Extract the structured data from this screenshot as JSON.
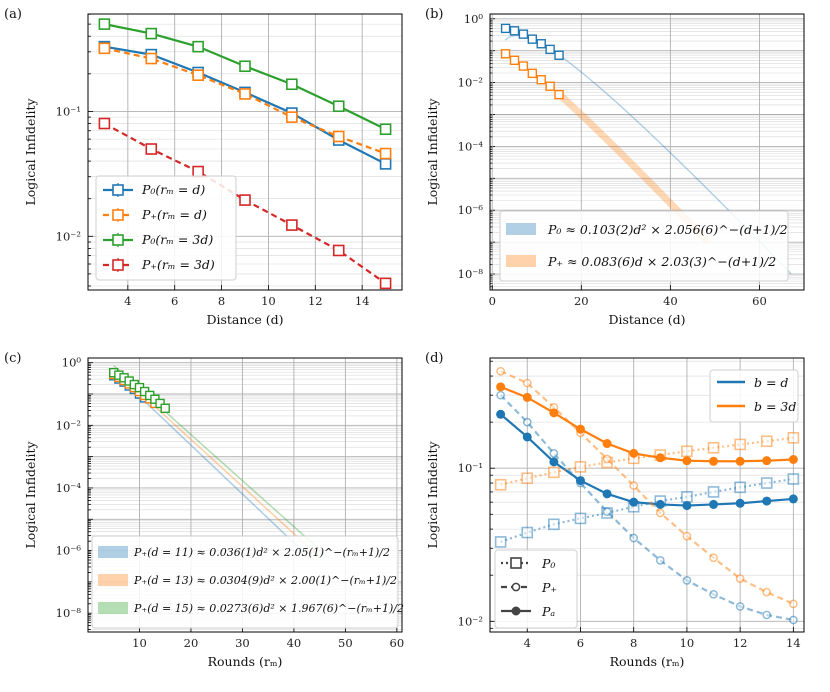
{
  "colors": {
    "blue": "#1f77b4",
    "orange": "#ff7f0e",
    "green": "#2ca02c",
    "red": "#d62728"
  },
  "chart_data": [
    {
      "panel": "(a)",
      "type": "line",
      "xlabel": "Distance (d)",
      "ylabel": "Logical Infidelity",
      "xlim": [
        2.3,
        15.7
      ],
      "ylim_log10": [
        -2.43,
        -0.22
      ],
      "xticks": [
        4,
        6,
        8,
        10,
        12,
        14
      ],
      "yticks": [
        {
          "v": -2,
          "label": "10⁻²"
        },
        {
          "v": -1,
          "label": "10⁻¹"
        }
      ],
      "legend": "lower-left",
      "series": [
        {
          "name": "P₀(rₘ = d)",
          "color": "blue",
          "dash": "solid",
          "marker": "square-open",
          "x": [
            3,
            5,
            7,
            9,
            11,
            13,
            15
          ],
          "y": [
            0.33,
            0.285,
            0.205,
            0.142,
            0.097,
            0.059,
            0.038
          ]
        },
        {
          "name": "P₊(rₘ = d)",
          "color": "orange",
          "dash": "dashed",
          "marker": "square-open",
          "x": [
            3,
            5,
            7,
            9,
            11,
            13,
            15
          ],
          "y": [
            0.32,
            0.265,
            0.195,
            0.138,
            0.09,
            0.063,
            0.046
          ]
        },
        {
          "name": "P₀(rₘ = 3d)",
          "color": "green",
          "dash": "solid",
          "marker": "square-open",
          "x": [
            3,
            5,
            7,
            9,
            11,
            13,
            15
          ],
          "y": [
            0.5,
            0.42,
            0.33,
            0.23,
            0.165,
            0.11,
            0.072
          ]
        },
        {
          "name": "P₊(rₘ = 3d)",
          "color": "red",
          "dash": "dashed",
          "marker": "square-open",
          "x": [
            3,
            5,
            7,
            9,
            11,
            13,
            15
          ],
          "y": [
            0.08,
            0.05,
            0.033,
            0.0195,
            0.0123,
            0.0077,
            0.0042
          ]
        }
      ]
    },
    {
      "panel": "(b)",
      "type": "line",
      "xlabel": "Distance (d)",
      "ylabel": "Logical Infidelity",
      "xlim": [
        -0.5,
        70
      ],
      "ylim_log10": [
        -8.5,
        0.15
      ],
      "xticks": [
        0,
        20,
        40,
        60
      ],
      "yticks": [
        {
          "v": 0,
          "label": "10⁰"
        },
        {
          "v": -2,
          "label": "10⁻²"
        },
        {
          "v": -4,
          "label": "10⁻⁴"
        },
        {
          "v": -6,
          "label": "10⁻⁶"
        },
        {
          "v": -8,
          "label": "10⁻⁸"
        }
      ],
      "legend": "lower-left",
      "fits": [
        {
          "name": "P₀ ≈ 0.103(2)d² × 2.056(6)^−(d+1)/2",
          "color": "blue",
          "A": 0.103,
          "pow": 2,
          "base": 2.056,
          "x0": 3,
          "x1": 67
        },
        {
          "name": "P₊ ≈ 0.083(6)d × 2.03(3)^−(d+1)/2",
          "color": "orange",
          "A": 0.083,
          "pow": 1,
          "base": 2.03,
          "x0": 15,
          "x1": 48
        }
      ],
      "series": [
        {
          "name": "P₀",
          "color": "blue",
          "marker": "square-open",
          "x": [
            3,
            5,
            7,
            9,
            11,
            13,
            15
          ],
          "y": [
            0.5,
            0.42,
            0.33,
            0.23,
            0.165,
            0.11,
            0.072
          ]
        },
        {
          "name": "P₊",
          "color": "orange",
          "marker": "square-open",
          "x": [
            3,
            5,
            7,
            9,
            11,
            13,
            15
          ],
          "y": [
            0.08,
            0.05,
            0.033,
            0.0195,
            0.0123,
            0.0077,
            0.0042
          ]
        }
      ]
    },
    {
      "panel": "(c)",
      "type": "line",
      "xlabel": "Rounds (rₘ)",
      "ylabel": "Logical Infidelity",
      "xlim": [
        0,
        61
      ],
      "ylim_log10": [
        -8.6,
        0.15
      ],
      "xticks": [
        10,
        20,
        30,
        40,
        50,
        60
      ],
      "yticks": [
        {
          "v": 0,
          "label": "10⁰"
        },
        {
          "v": -2,
          "label": "10⁻²"
        },
        {
          "v": -4,
          "label": "10⁻⁴"
        },
        {
          "v": -6,
          "label": "10⁻⁶"
        },
        {
          "v": -8,
          "label": "10⁻⁸"
        }
      ],
      "legend": "lower-left",
      "fits": [
        {
          "name": "P₊(d = 11) ≈ 0.036(1)d² × 2.05(1)^−(rₘ+1)/2",
          "color": "blue",
          "A": 0.036,
          "d": 11,
          "base": 2.05,
          "x0": 5,
          "x1": 42
        },
        {
          "name": "P₊(d = 13) ≈ 0.0304(9)d² × 2.00(1)^−(rₘ+1)/2",
          "color": "orange",
          "A": 0.0304,
          "d": 13,
          "base": 2.0,
          "x0": 5,
          "x1": 45
        },
        {
          "name": "P₊(d = 15) ≈ 0.0273(6)d² × 1.967(6)^−(rₘ+1)/2",
          "color": "green",
          "A": 0.0273,
          "d": 15,
          "base": 1.967,
          "x0": 5,
          "x1": 47
        }
      ],
      "series": [
        {
          "name": "d=11",
          "color": "blue",
          "marker": "square-open",
          "x": [
            5,
            6,
            7,
            8,
            9,
            10,
            11
          ],
          "y": [
            0.38,
            0.3,
            0.24,
            0.18,
            0.14,
            0.1,
            0.075
          ]
        },
        {
          "name": "d=13",
          "color": "orange",
          "marker": "square-open",
          "x": [
            5,
            6,
            7,
            8,
            9,
            10,
            11,
            12,
            13
          ],
          "y": [
            0.42,
            0.34,
            0.27,
            0.21,
            0.16,
            0.12,
            0.09,
            0.07,
            0.05
          ]
        },
        {
          "name": "d=15",
          "color": "green",
          "marker": "square-open",
          "x": [
            5,
            6,
            7,
            8,
            9,
            10,
            11,
            12,
            13,
            14,
            15
          ],
          "y": [
            0.48,
            0.4,
            0.33,
            0.26,
            0.2,
            0.16,
            0.12,
            0.09,
            0.068,
            0.05,
            0.035
          ]
        }
      ]
    },
    {
      "panel": "(d)",
      "type": "line",
      "xlabel": "Rounds (rₘ)",
      "ylabel": "Logical Infidelity",
      "xlim": [
        2.6,
        14.4
      ],
      "ylim_log10": [
        -2.07,
        -0.28
      ],
      "xticks": [
        4,
        6,
        8,
        10,
        12,
        14
      ],
      "yticks": [
        {
          "v": -2,
          "label": "10⁻²"
        },
        {
          "v": -1,
          "label": "10⁻¹"
        }
      ],
      "legend_colors": [
        {
          "name": "b = d",
          "color": "blue"
        },
        {
          "name": "b = 3d",
          "color": "orange"
        }
      ],
      "legend_styles": [
        {
          "name": "P₀",
          "dash": "dotted",
          "marker": "square-open"
        },
        {
          "name": "P₊",
          "dash": "dashed",
          "marker": "circle-open"
        },
        {
          "name": "Pₐ",
          "dash": "solid",
          "marker": "circle-filled"
        }
      ],
      "series": [
        {
          "name": "P₀ b=d",
          "color": "blue",
          "dash": "dotted",
          "marker": "square-open",
          "alpha": 0.5,
          "x": [
            3,
            4,
            5,
            6,
            7,
            8,
            9,
            10,
            11,
            12,
            13,
            14
          ],
          "y": [
            0.033,
            0.038,
            0.043,
            0.047,
            0.051,
            0.056,
            0.061,
            0.065,
            0.07,
            0.075,
            0.08,
            0.085
          ]
        },
        {
          "name": "P₊ b=d",
          "color": "blue",
          "dash": "dashed",
          "marker": "circle-open",
          "alpha": 0.5,
          "x": [
            3,
            4,
            5,
            6,
            7,
            8,
            9,
            10,
            11,
            12,
            13,
            14
          ],
          "y": [
            0.3,
            0.2,
            0.125,
            0.08,
            0.052,
            0.035,
            0.025,
            0.0185,
            0.015,
            0.0125,
            0.011,
            0.0102
          ]
        },
        {
          "name": "Pₐ b=d",
          "color": "blue",
          "dash": "solid",
          "marker": "circle-filled",
          "alpha": 1,
          "x": [
            3,
            4,
            5,
            6,
            7,
            8,
            9,
            10,
            11,
            12,
            13,
            14
          ],
          "y": [
            0.225,
            0.16,
            0.11,
            0.083,
            0.068,
            0.06,
            0.058,
            0.057,
            0.058,
            0.059,
            0.061,
            0.063
          ]
        },
        {
          "name": "P₀ b=3d",
          "color": "orange",
          "dash": "dotted",
          "marker": "square-open",
          "alpha": 0.5,
          "x": [
            3,
            4,
            5,
            6,
            7,
            8,
            9,
            10,
            11,
            12,
            13,
            14
          ],
          "y": [
            0.078,
            0.086,
            0.094,
            0.102,
            0.109,
            0.116,
            0.122,
            0.129,
            0.136,
            0.143,
            0.15,
            0.158
          ]
        },
        {
          "name": "P₊ b=3d",
          "color": "orange",
          "dash": "dashed",
          "marker": "circle-open",
          "alpha": 0.5,
          "x": [
            3,
            4,
            5,
            6,
            7,
            8,
            9,
            10,
            11,
            12,
            13,
            14
          ],
          "y": [
            0.43,
            0.36,
            0.25,
            0.17,
            0.115,
            0.077,
            0.051,
            0.036,
            0.026,
            0.019,
            0.0155,
            0.013
          ]
        },
        {
          "name": "Pₐ b=3d",
          "color": "orange",
          "dash": "solid",
          "marker": "circle-filled",
          "alpha": 1,
          "x": [
            3,
            4,
            5,
            6,
            7,
            8,
            9,
            10,
            11,
            12,
            13,
            14
          ],
          "y": [
            0.34,
            0.29,
            0.23,
            0.18,
            0.145,
            0.125,
            0.117,
            0.112,
            0.111,
            0.111,
            0.112,
            0.114
          ]
        }
      ]
    }
  ]
}
